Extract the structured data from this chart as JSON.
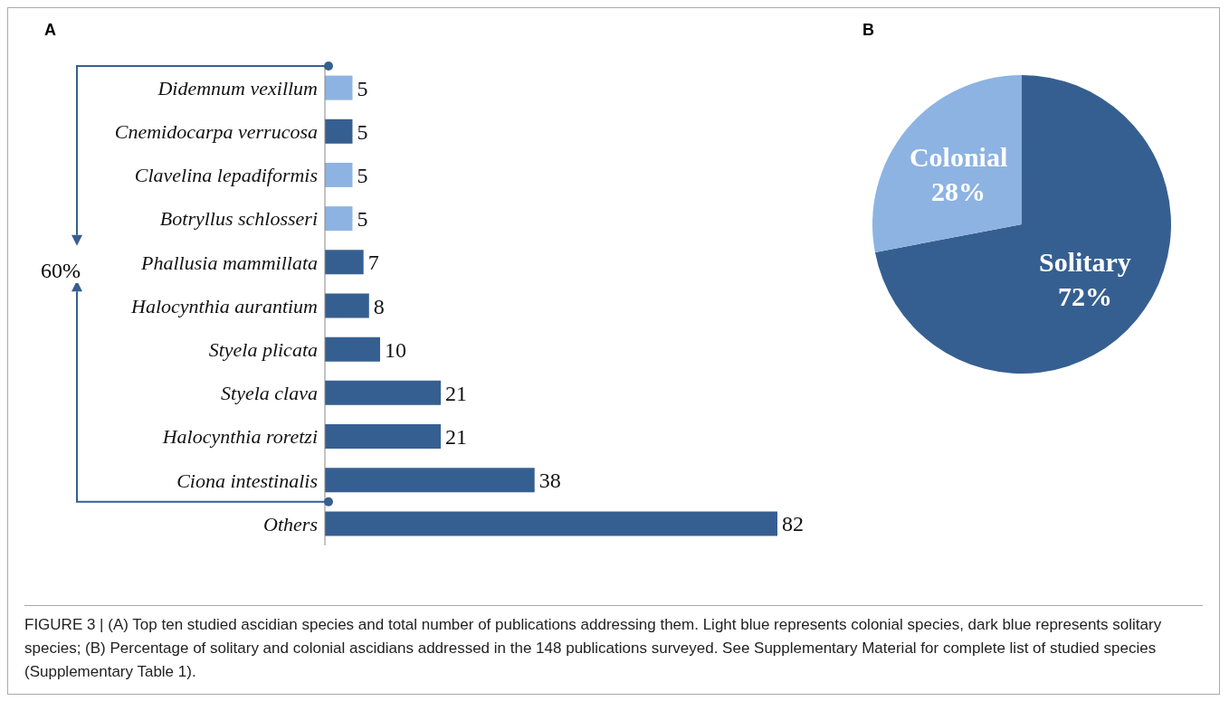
{
  "chart_data": [
    {
      "type": "bar",
      "title": "A",
      "orientation": "horizontal",
      "categories": [
        "Didemnum vexillum",
        "Cnemidocarpa verrucosa",
        "Clavelina lepadiformis",
        "Botryllus schlosseri",
        "Phallusia mammillata",
        "Halocynthia aurantium",
        "Styela plicata",
        "Styela clava",
        "Halocynthia roretzi",
        "Ciona intestinalis",
        "Others"
      ],
      "values": [
        5,
        5,
        5,
        5,
        7,
        8,
        10,
        21,
        21,
        38,
        82
      ],
      "colors": [
        "#8db3e2",
        "#365f91",
        "#8db3e2",
        "#8db3e2",
        "#365f91",
        "#365f91",
        "#365f91",
        "#365f91",
        "#365f91",
        "#365f91",
        "#365f91"
      ],
      "data_labels": true,
      "annotations": [
        "60%",
        "FIGURE 3 | (A) Top ten studied ascidian species and total number of publications addressing them. Light blue represents colonial species, dark blue represents solitary species; (B) Percentage of solitary and colonial ascidians addressed in the 148 publications surveyed. See Supplementary Material for complete list of studied species (Supplementary Table 1)."
      ]
    },
    {
      "type": "pie",
      "title": "B",
      "categories": [
        "Solitary",
        "Colonial"
      ],
      "values": [
        72,
        28
      ],
      "colors": [
        "#365f91",
        "#8db3e2"
      ],
      "value_labels": [
        "72%",
        "28%"
      ]
    }
  ]
}
